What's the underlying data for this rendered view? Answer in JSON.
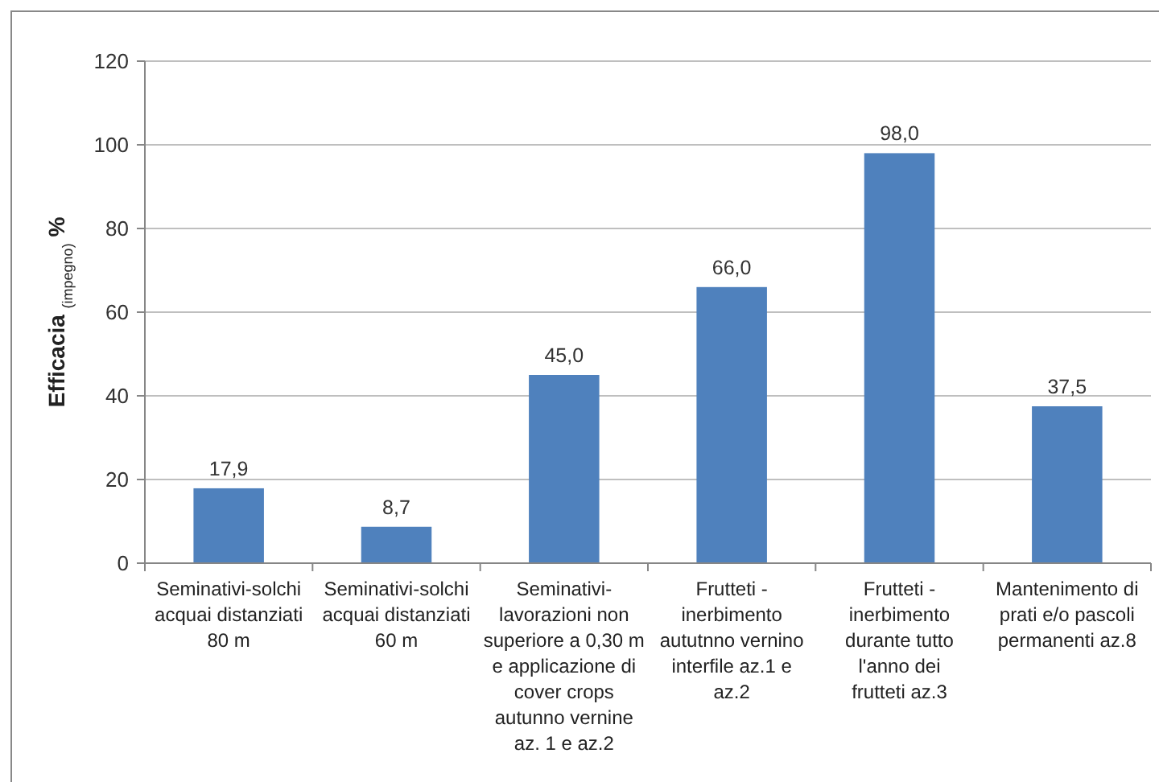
{
  "chart_data": {
    "type": "bar",
    "ylabel": "Efficacia $_{(impegno)}$ %",
    "categories": [
      "Seminativi-solchi acquai distanziati 80 m",
      "Seminativi-solchi acquai distanziati 60 m",
      "Seminativi-lavorazioni non superiore a 0,30 m e applicazione di cover crops autunno vernine az. 1 e az.2",
      "Frutteti - inerbimento aututnno vernino interfile az.1 e az.2",
      "Frutteti - inerbimento durante tutto l'anno dei frutteti az.3",
      "Mantenimento di prati e/o pascoli permanenti az.8"
    ],
    "values": [
      17.9,
      8.7,
      45.0,
      66.0,
      98.0,
      37.5
    ],
    "value_labels": [
      "17,9",
      "8,7",
      "45,0",
      "66,0",
      "98,0",
      "37,5"
    ],
    "color": "#4f81bd",
    "ylim": [
      0,
      120
    ],
    "yticks": [
      0,
      20,
      40,
      60,
      80,
      100,
      120
    ],
    "grid": "y"
  }
}
